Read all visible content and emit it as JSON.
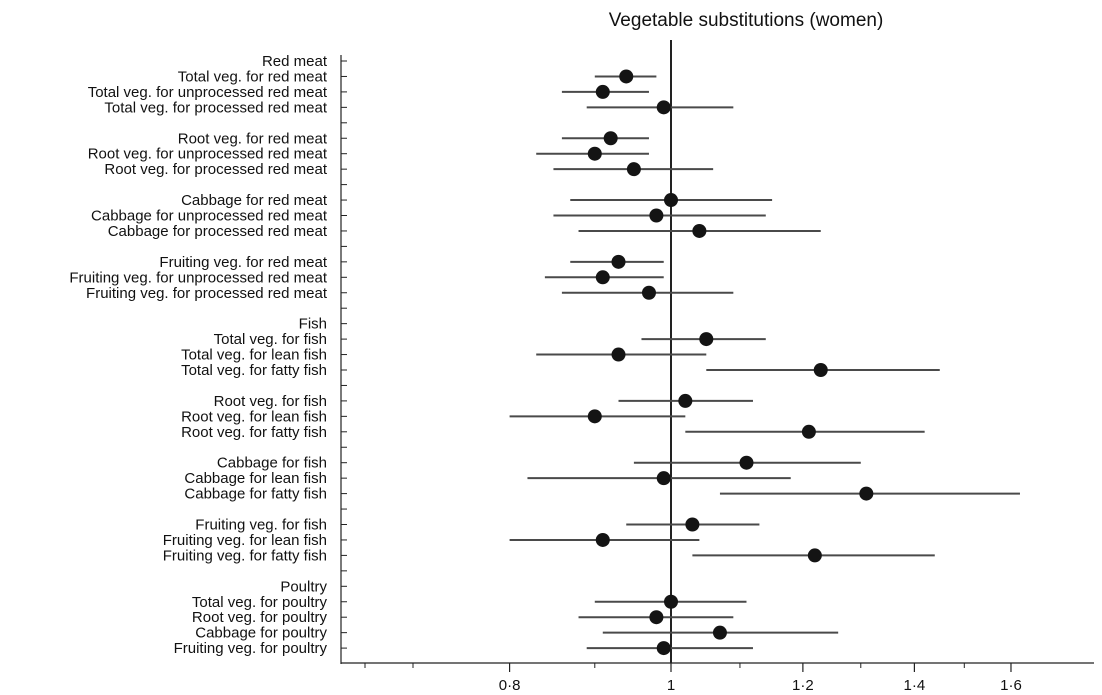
{
  "chart_data": {
    "type": "forest",
    "title": "Vegetable substitutions (women)",
    "x_scale": "log",
    "xlim": [
      0.67,
      1.6
    ],
    "xticks": [
      {
        "value": 0.8,
        "label": "0·8"
      },
      {
        "value": 1.0,
        "label": "1"
      },
      {
        "value": 1.2,
        "label": "1·2"
      },
      {
        "value": 1.4,
        "label": "1·4"
      },
      {
        "value": 1.6,
        "label": "1·6"
      }
    ],
    "minor_ticks": [
      0.7,
      0.9,
      1.1,
      1.3,
      1.5
    ],
    "reference_line": 1.0,
    "rows": [
      {
        "label": "Red meat",
        "est": null,
        "lo": null,
        "hi": null
      },
      {
        "label": "Total veg. for red meat",
        "est": 0.94,
        "lo": 0.9,
        "hi": 0.98
      },
      {
        "label": "Total veg. for unprocessed red meat",
        "est": 0.91,
        "lo": 0.86,
        "hi": 0.97
      },
      {
        "label": "Total veg. for processed red meat",
        "est": 0.99,
        "lo": 0.89,
        "hi": 1.09
      },
      {
        "label": "",
        "est": null,
        "lo": null,
        "hi": null
      },
      {
        "label": "Root veg. for red meat",
        "est": 0.92,
        "lo": 0.86,
        "hi": 0.97
      },
      {
        "label": "Root veg. for unprocessed red meat",
        "est": 0.9,
        "lo": 0.83,
        "hi": 0.97
      },
      {
        "label": "Root veg. for processed red meat",
        "est": 0.95,
        "lo": 0.85,
        "hi": 1.06
      },
      {
        "label": "",
        "est": null,
        "lo": null,
        "hi": null
      },
      {
        "label": "Cabbage for red meat",
        "est": 1.0,
        "lo": 0.87,
        "hi": 1.15
      },
      {
        "label": "Cabbage for unprocessed red meat",
        "est": 0.98,
        "lo": 0.85,
        "hi": 1.14
      },
      {
        "label": "Cabbage for processed red meat",
        "est": 1.04,
        "lo": 0.88,
        "hi": 1.23
      },
      {
        "label": "",
        "est": null,
        "lo": null,
        "hi": null
      },
      {
        "label": "Fruiting veg. for red meat",
        "est": 0.93,
        "lo": 0.87,
        "hi": 0.99
      },
      {
        "label": "Fruiting veg. for unprocessed red meat",
        "est": 0.91,
        "lo": 0.84,
        "hi": 0.99
      },
      {
        "label": "Fruiting veg. for processed red meat",
        "est": 0.97,
        "lo": 0.86,
        "hi": 1.09
      },
      {
        "label": "",
        "est": null,
        "lo": null,
        "hi": null
      },
      {
        "label": "Fish",
        "est": null,
        "lo": null,
        "hi": null
      },
      {
        "label": "Total veg. for fish",
        "est": 1.05,
        "lo": 0.96,
        "hi": 1.14
      },
      {
        "label": "Total veg. for lean fish",
        "est": 0.93,
        "lo": 0.83,
        "hi": 1.05
      },
      {
        "label": "Total veg. for fatty fish",
        "est": 1.23,
        "lo": 1.05,
        "hi": 1.45
      },
      {
        "label": "",
        "est": null,
        "lo": null,
        "hi": null
      },
      {
        "label": "Root veg. for fish",
        "est": 1.02,
        "lo": 0.93,
        "hi": 1.12
      },
      {
        "label": "Root veg. for lean fish",
        "est": 0.9,
        "lo": 0.8,
        "hi": 1.02
      },
      {
        "label": "Root veg. for fatty fish",
        "est": 1.21,
        "lo": 1.02,
        "hi": 1.42
      },
      {
        "label": "",
        "est": null,
        "lo": null,
        "hi": null
      },
      {
        "label": "Cabbage for fish",
        "est": 1.11,
        "lo": 0.95,
        "hi": 1.3
      },
      {
        "label": "Cabbage for lean fish",
        "est": 0.99,
        "lo": 0.82,
        "hi": 1.18
      },
      {
        "label": "Cabbage for fatty fish",
        "est": 1.31,
        "lo": 1.07,
        "hi": 1.62
      },
      {
        "label": "",
        "est": null,
        "lo": null,
        "hi": null
      },
      {
        "label": "Fruiting veg. for fish",
        "est": 1.03,
        "lo": 0.94,
        "hi": 1.13
      },
      {
        "label": "Fruiting veg. for lean fish",
        "est": 0.91,
        "lo": 0.8,
        "hi": 1.04
      },
      {
        "label": "Fruiting veg. for fatty fish",
        "est": 1.22,
        "lo": 1.03,
        "hi": 1.44
      },
      {
        "label": "",
        "est": null,
        "lo": null,
        "hi": null
      },
      {
        "label": "Poultry",
        "est": null,
        "lo": null,
        "hi": null
      },
      {
        "label": "Total veg. for poultry",
        "est": 1.0,
        "lo": 0.9,
        "hi": 1.11
      },
      {
        "label": "Root veg. for poultry",
        "est": 0.98,
        "lo": 0.88,
        "hi": 1.09
      },
      {
        "label": "Cabbage for poultry",
        "est": 1.07,
        "lo": 0.91,
        "hi": 1.26
      },
      {
        "label": "Fruiting veg. for poultry",
        "est": 0.99,
        "lo": 0.89,
        "hi": 1.12
      }
    ]
  }
}
